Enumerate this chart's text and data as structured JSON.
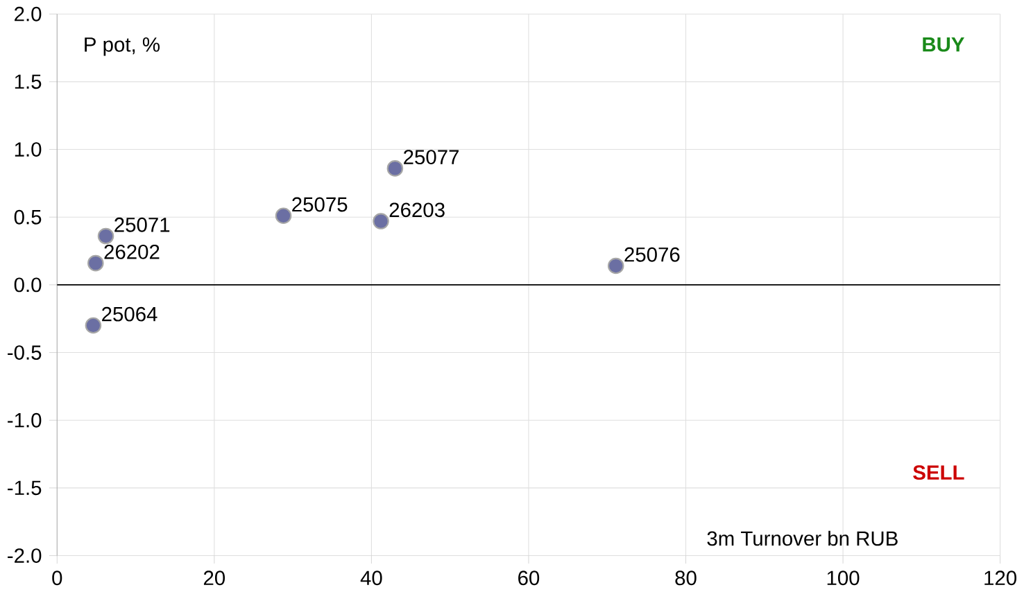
{
  "chart_data": {
    "type": "scatter",
    "xlabel": "3m Turnover bn RUB",
    "ylabel": "P pot, %",
    "series": [
      {
        "color": "#6b6fa3",
        "x": [
          43.0,
          41.2,
          28.8,
          6.2,
          4.9,
          4.6,
          71.1
        ],
        "values": [
          0.86,
          0.47,
          0.51,
          0.36,
          0.16,
          -0.3,
          0.14
        ]
      }
    ],
    "annotations": [
      {
        "text": "25077",
        "x": 43.0,
        "y": 0.86
      },
      {
        "text": "26203",
        "x": 41.2,
        "y": 0.47
      },
      {
        "text": "25075",
        "x": 28.8,
        "y": 0.51
      },
      {
        "text": "25071",
        "x": 6.2,
        "y": 0.36
      },
      {
        "text": "26202",
        "x": 4.9,
        "y": 0.16
      },
      {
        "text": "25064",
        "x": 4.6,
        "y": -0.3
      },
      {
        "text": "25076",
        "x": 71.1,
        "y": 0.14
      },
      "BUY",
      "SELL"
    ],
    "xlim": [
      0,
      120
    ],
    "ylim": [
      -2.0,
      2.0
    ],
    "xticks": [
      0,
      20,
      40,
      60,
      80,
      100,
      120
    ],
    "yticks": [
      {
        "value": 2.0,
        "label": "2.0"
      },
      {
        "value": 1.5,
        "label": "1.5"
      },
      {
        "value": 1.0,
        "label": "1.0"
      },
      {
        "value": 0.5,
        "label": "0.5"
      },
      {
        "value": 0.0,
        "label": "0.0"
      },
      {
        "value": -0.5,
        "label": "-0.5"
      },
      {
        "value": -1.0,
        "label": "-1.0"
      },
      {
        "value": -1.5,
        "label": "-1.5"
      },
      {
        "value": -2.0,
        "label": "-2.0"
      }
    ],
    "ref_lines": [
      {
        "axis": "y",
        "value": 0,
        "color": "#000000"
      }
    ],
    "grid": true,
    "marker": "circle"
  }
}
